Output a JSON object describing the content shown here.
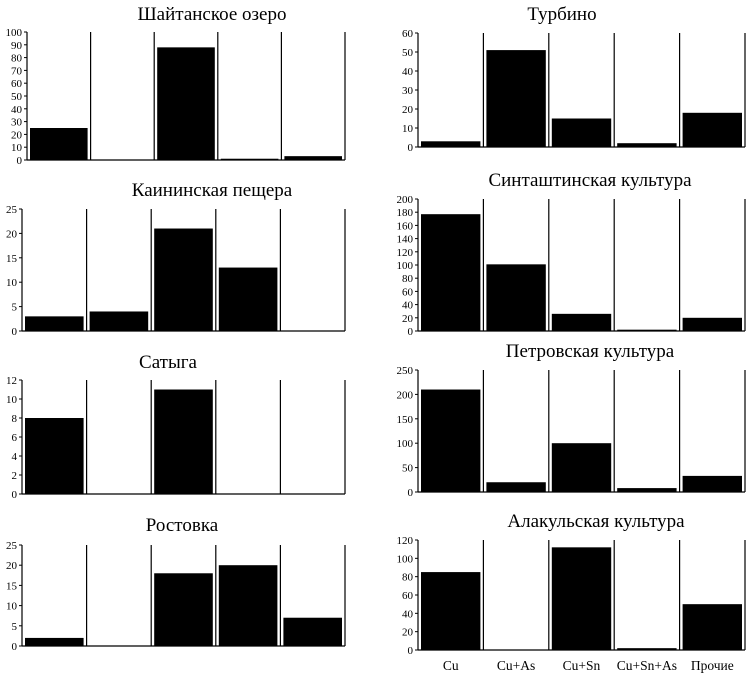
{
  "figure": {
    "categories": [
      "Cu",
      "Cu+As",
      "Cu+Sn",
      "Cu+Sn+As",
      "Прочие"
    ]
  },
  "chart_data": [
    {
      "type": "bar",
      "title": "Шайтанское озеро",
      "categories": [
        "Cu",
        "Cu+As",
        "Cu+Sn",
        "Cu+Sn+As",
        "Прочие"
      ],
      "values": [
        25,
        0,
        88,
        1,
        3
      ],
      "ylim": [
        0,
        100
      ],
      "yticks": [
        0,
        10,
        20,
        30,
        40,
        50,
        60,
        70,
        80,
        90,
        100
      ]
    },
    {
      "type": "bar",
      "title": "Каининская пещера",
      "categories": [
        "Cu",
        "Cu+As",
        "Cu+Sn",
        "Cu+Sn+As",
        "Прочие"
      ],
      "values": [
        3,
        4,
        21,
        13,
        0
      ],
      "ylim": [
        0,
        25
      ],
      "yticks": [
        0,
        5,
        10,
        15,
        20,
        25
      ]
    },
    {
      "type": "bar",
      "title": "Сатыга",
      "categories": [
        "Cu",
        "Cu+As",
        "Cu+Sn",
        "Cu+Sn+As",
        "Прочие"
      ],
      "values": [
        8,
        0,
        11,
        0,
        0
      ],
      "ylim": [
        0,
        12
      ],
      "yticks": [
        0,
        2,
        4,
        6,
        8,
        10,
        12
      ]
    },
    {
      "type": "bar",
      "title": "Ростовка",
      "categories": [
        "Cu",
        "Cu+As",
        "Cu+Sn",
        "Cu+Sn+As",
        "Прочие"
      ],
      "values": [
        2,
        0,
        18,
        20,
        7
      ],
      "ylim": [
        0,
        25
      ],
      "yticks": [
        0,
        5,
        10,
        15,
        20,
        25
      ]
    },
    {
      "type": "bar",
      "title": "Турбино",
      "categories": [
        "Cu",
        "Cu+As",
        "Cu+Sn",
        "Cu+Sn+As",
        "Прочие"
      ],
      "values": [
        3,
        51,
        15,
        2,
        18
      ],
      "ylim": [
        0,
        60
      ],
      "yticks": [
        0,
        10,
        20,
        30,
        40,
        50,
        60
      ]
    },
    {
      "type": "bar",
      "title": "Синташтинская культура",
      "categories": [
        "Cu",
        "Cu+As",
        "Cu+Sn",
        "Cu+Sn+As",
        "Прочие"
      ],
      "values": [
        177,
        101,
        26,
        2,
        20
      ],
      "ylim": [
        0,
        200
      ],
      "yticks": [
        0,
        20,
        40,
        60,
        80,
        100,
        120,
        140,
        160,
        180,
        200
      ]
    },
    {
      "type": "bar",
      "title": "Петровская культура",
      "categories": [
        "Cu",
        "Cu+As",
        "Cu+Sn",
        "Cu+Sn+As",
        "Прочие"
      ],
      "values": [
        210,
        20,
        100,
        8,
        33
      ],
      "ylim": [
        0,
        250
      ],
      "yticks": [
        0,
        50,
        100,
        150,
        200,
        250
      ]
    },
    {
      "type": "bar",
      "title": "Алакульская культура",
      "categories": [
        "Cu",
        "Cu+As",
        "Cu+Sn",
        "Cu+Sn+As",
        "Прочие"
      ],
      "values": [
        85,
        0,
        112,
        2,
        50
      ],
      "ylim": [
        0,
        120
      ],
      "yticks": [
        0,
        20,
        40,
        60,
        80,
        100,
        120
      ]
    }
  ]
}
